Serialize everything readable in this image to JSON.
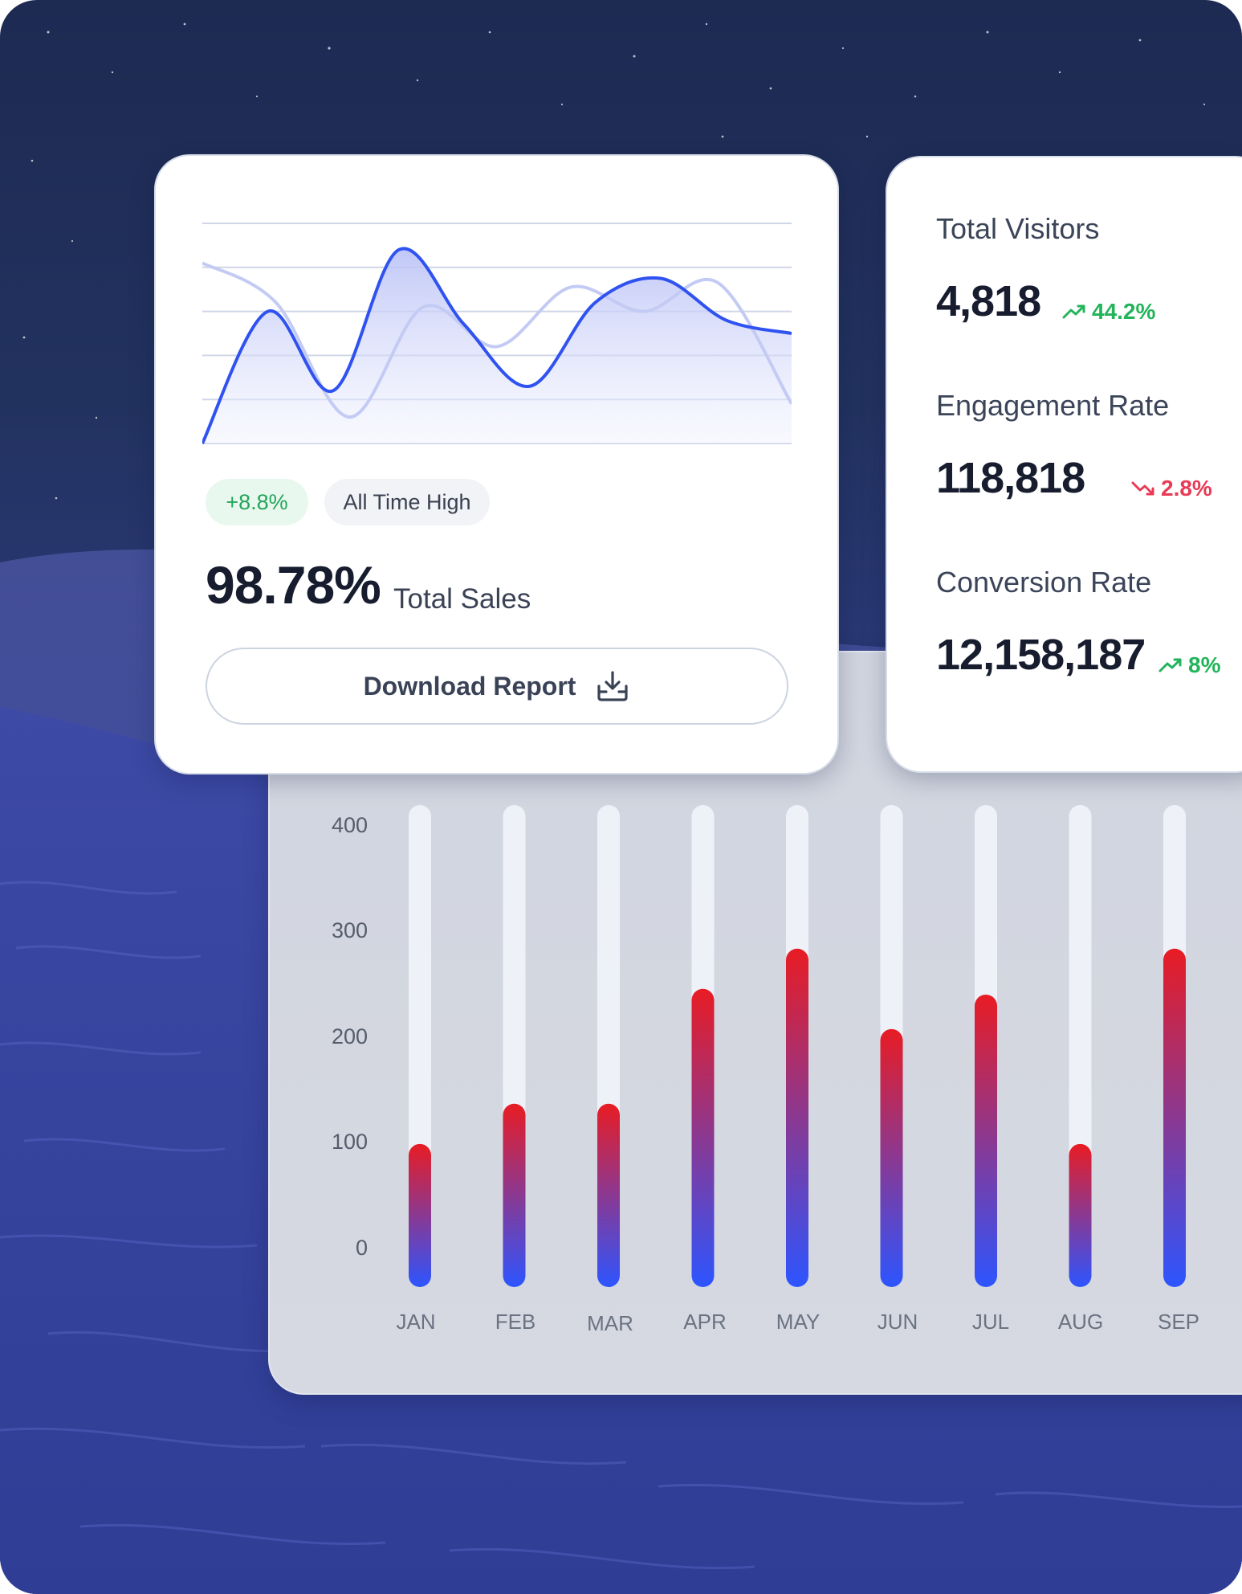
{
  "sales_card": {
    "change_badge": "+8.8%",
    "status_badge": "All Time High",
    "value": "98.78%",
    "value_label": "Total Sales",
    "download_label": "Download Report"
  },
  "kpis": [
    {
      "label": "Total Visitors",
      "value": "4,818",
      "change": "44.2%",
      "direction": "up"
    },
    {
      "label": "Engagement Rate",
      "value": "118,818",
      "change": "2.8%",
      "direction": "down"
    },
    {
      "label": "Conversion Rate",
      "value": "12,158,187",
      "change": "8%",
      "direction": "up"
    }
  ],
  "colors": {
    "accent_blue": "#2f52f0",
    "positive": "#22b45a",
    "negative": "#e83b55",
    "bar_top": "#e81c24",
    "bar_bottom": "#2d55ff"
  },
  "chart_data": [
    {
      "type": "line",
      "series": [
        {
          "values": [
            0,
            60,
            24,
            88,
            54,
            26,
            64,
            75,
            56,
            50
          ]
        },
        {
          "values": [
            82,
            64,
            12,
            62,
            44,
            71,
            60,
            73,
            18
          ]
        }
      ],
      "ylim": [
        0,
        100
      ],
      "grid": true
    },
    {
      "type": "bar",
      "categories": [
        "JAN",
        "FEB",
        "MAR",
        "APR",
        "MAY",
        "JUN",
        "JUL",
        "AUG",
        "SEP"
      ],
      "values": [
        105,
        140,
        140,
        240,
        275,
        205,
        235,
        105,
        275
      ],
      "ylim": [
        0,
        400
      ],
      "yticks": [
        "400",
        "300",
        "200",
        "100",
        "0"
      ],
      "grid": false
    }
  ]
}
